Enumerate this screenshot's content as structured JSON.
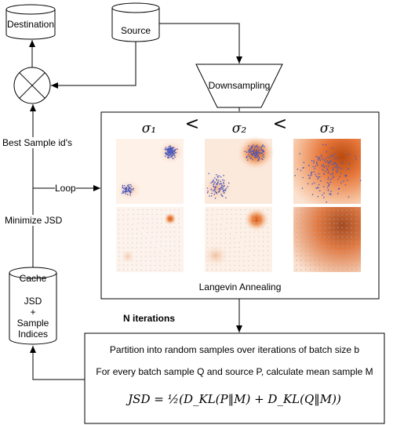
{
  "nodes": {
    "destination": "Destination",
    "source": "Source",
    "downsampling": "Downsampling",
    "cache_title": "Cache",
    "cache_lines": [
      "JSD",
      "+",
      "Sample",
      "Indices"
    ]
  },
  "edge_labels": {
    "best_sample": "Best Sample id's",
    "loop": "Loop",
    "minimize": "Minimize JSD",
    "n_iterations": "N iterations"
  },
  "langevin": {
    "caption": "Langevin Annealing",
    "sigma1": "σ₁",
    "sigma2": "σ₂",
    "sigma3": "σ₃",
    "less_than": "<"
  },
  "partition": {
    "line1": "Partition into random samples over iterations of batch size b",
    "line2": "For every batch sample Q and source P, calculate mean sample M",
    "formula": "JSD = ½(D_KL(P‖M) + D_KL(Q‖M))"
  },
  "colors": {
    "stroke": "#000000",
    "density": "#e06a1a",
    "points": "#4a5bbf"
  }
}
